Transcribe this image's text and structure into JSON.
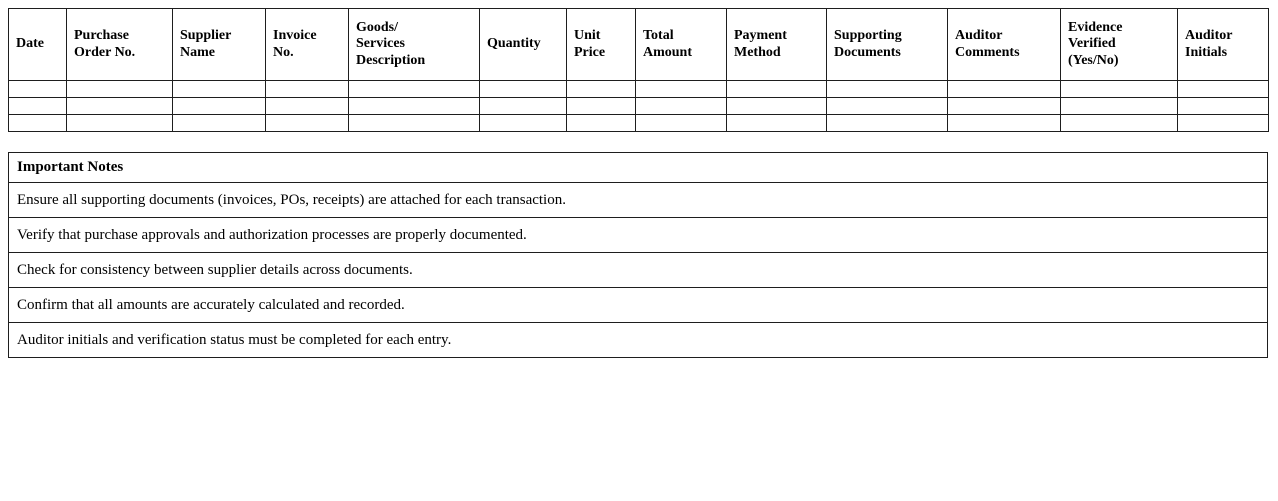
{
  "audit_table": {
    "columns": [
      "Date",
      "Purchase\nOrder No.",
      "Supplier\nName",
      "Invoice\nNo.",
      "Goods/\nServices\nDescription",
      "Quantity",
      "Unit\nPrice",
      "Total\nAmount",
      "Payment\nMethod",
      "Supporting\nDocuments",
      "Auditor\nComments",
      "Evidence\nVerified\n(Yes/No)",
      "Auditor\nInitials"
    ],
    "empty_row_count": 3
  },
  "notes": {
    "title": "Important Notes",
    "items": [
      "Ensure all supporting documents (invoices, POs, receipts) are attached for each transaction.",
      "Verify that purchase approvals and authorization processes are properly documented.",
      "Check for consistency between supplier details across documents.",
      "Confirm that all amounts are accurately calculated and recorded.",
      "Auditor initials and verification status must be completed for each entry."
    ]
  },
  "colors": {
    "border": "#1e1e1e",
    "text": "#000000",
    "page_background": "#ffffff"
  }
}
